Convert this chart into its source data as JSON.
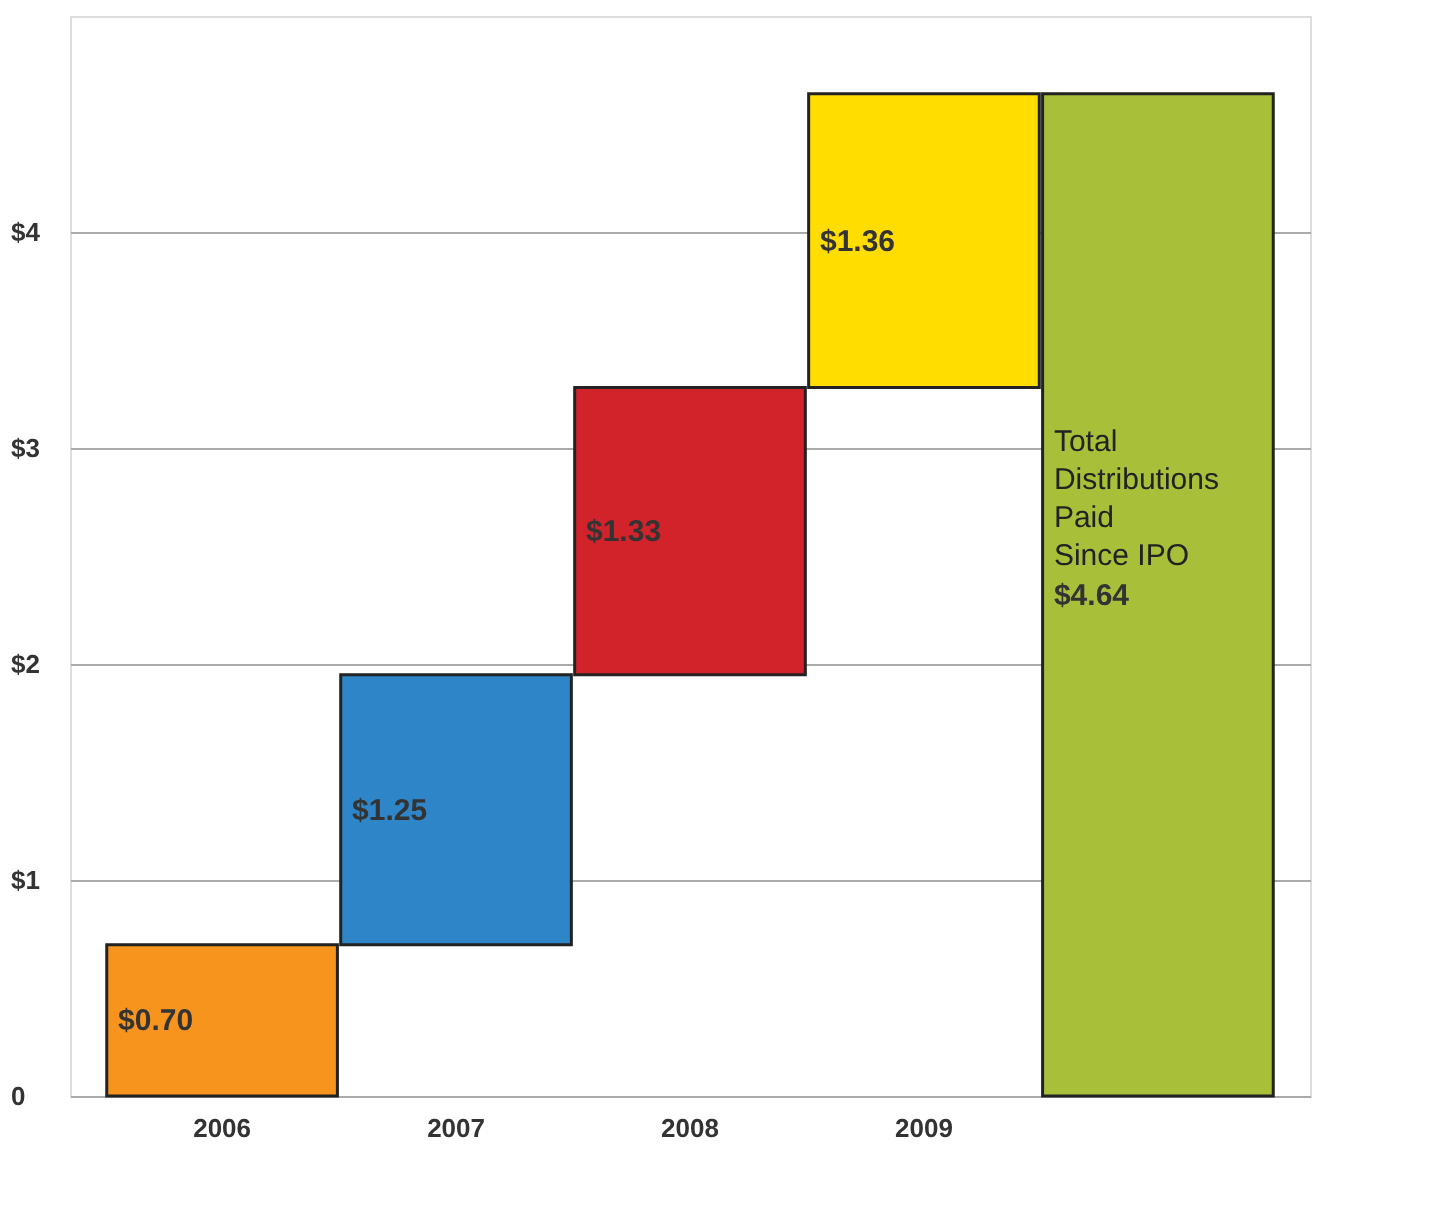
{
  "chart_data": {
    "type": "bar",
    "categories": [
      "2006",
      "2007",
      "2008",
      "2009",
      null
    ],
    "values": [
      0.7,
      1.25,
      1.33,
      1.36,
      4.64
    ],
    "base": [
      0,
      0.7,
      1.95,
      3.28,
      0
    ],
    "colors": [
      "#f7941d",
      "#2e86c8",
      "#d2232a",
      "#ffdd00",
      "#a8bf3a"
    ],
    "value_labels": [
      "$0.70",
      "$1.25",
      "$1.33",
      "$1.36",
      "$4.64"
    ],
    "annotations": [
      "Total\nDistributions\nPaid\nSince IPO"
    ],
    "ylim": [
      0,
      5
    ],
    "yticks": [
      {
        "value": 0,
        "label": "0"
      },
      {
        "value": 1,
        "label": "$1"
      },
      {
        "value": 2,
        "label": "$2"
      },
      {
        "value": 3,
        "label": "$3"
      },
      {
        "value": 4,
        "label": "$4"
      }
    ],
    "grid": "y"
  }
}
